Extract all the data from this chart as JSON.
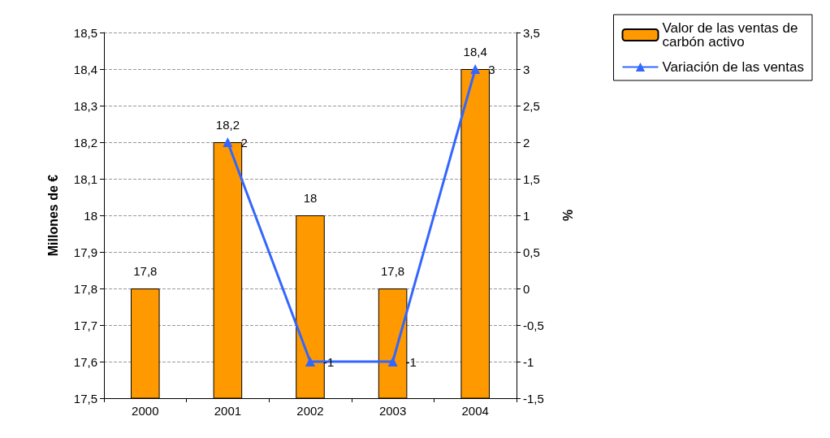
{
  "chart_data": {
    "type": "bar",
    "categories": [
      "2000",
      "2001",
      "2002",
      "2003",
      "2004"
    ],
    "series": [
      {
        "name": "Valor de las ventas de carbón activo",
        "color": "#ff9900",
        "values": [
          17.8,
          18.2,
          18,
          17.8,
          18.4
        ],
        "value_labels": [
          "17,8",
          "18,2",
          "18",
          "17,8",
          "18,4"
        ]
      },
      {
        "name": "Variación de las ventas",
        "type": "line",
        "axis": "y2",
        "color": "#3366ff",
        "marker": "triangle",
        "values": [
          null,
          2,
          -1,
          -1,
          3
        ],
        "value_labels": [
          null,
          "2",
          "-1",
          "-1",
          "3"
        ]
      }
    ],
    "ylabel": "Millones de €",
    "y2label": "%",
    "ylim": [
      17.5,
      18.5
    ],
    "yticks": [
      {
        "value": 17.5,
        "label": "17,5"
      },
      {
        "value": 17.6,
        "label": "17,6"
      },
      {
        "value": 17.7,
        "label": "17,7"
      },
      {
        "value": 17.8,
        "label": "17,8"
      },
      {
        "value": 17.9,
        "label": "17,9"
      },
      {
        "value": 18,
        "label": "18"
      },
      {
        "value": 18.1,
        "label": "18,1"
      },
      {
        "value": 18.2,
        "label": "18,2"
      },
      {
        "value": 18.3,
        "label": "18,3"
      },
      {
        "value": 18.4,
        "label": "18,4"
      },
      {
        "value": 18.5,
        "label": "18,5"
      }
    ],
    "y2lim": [
      -1.5,
      3.5
    ],
    "y2ticks": [
      {
        "value": -1.5,
        "label": "-1,5"
      },
      -1,
      {
        "value": -0.5,
        "label": "-0,5"
      },
      0,
      {
        "value": 0.5,
        "label": "0,5"
      },
      1,
      {
        "value": 1.5,
        "label": "1,5"
      },
      2,
      {
        "value": 2.5,
        "label": "2,5"
      },
      3,
      {
        "value": 3.5,
        "label": "3,5"
      }
    ],
    "grid": "y",
    "legend": "top right"
  }
}
